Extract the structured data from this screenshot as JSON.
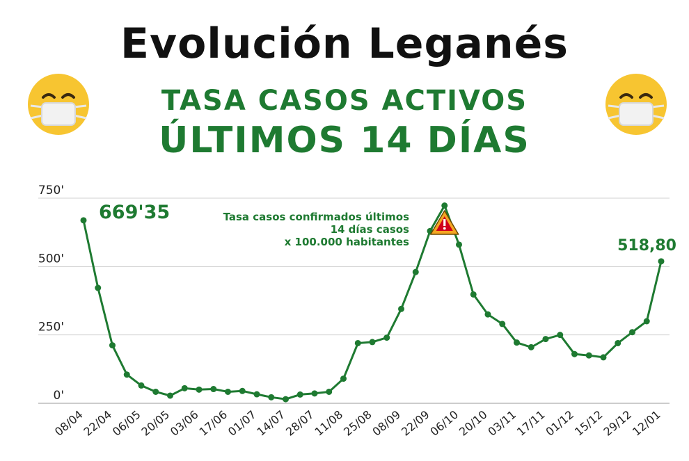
{
  "header": {
    "title": "Evolución Leganés",
    "subtitle1": "TASA CASOS ACTIVOS",
    "subtitle2": "ÚLTIMOS 14 DÍAS"
  },
  "icons": {
    "left": "masked-face-icon",
    "right": "masked-face-icon",
    "peak": "warning-icon"
  },
  "colors": {
    "line": "#1e7a31",
    "text_green": "#1e7a31",
    "grid": "#d0d0d0",
    "warning": "#f5a623",
    "warning_mark": "#d0021b"
  },
  "chart_data": {
    "type": "line",
    "title": "Tasa casos confirmados últimos 14 días casos x 100.000 habitantes",
    "annotation_lines": [
      "Tasa casos confirmados últimos",
      "14 días  casos",
      "x 100.000 habitantes"
    ],
    "first_label": "669'35",
    "last_label": "518,80",
    "ylim": [
      0,
      750
    ],
    "yticks": [
      0,
      250,
      500,
      750
    ],
    "ytick_labels": [
      "0'",
      "250'",
      "500'",
      "750'"
    ],
    "xtick_labels": [
      "08/04",
      "22/04",
      "06/05",
      "20/05",
      "03/06",
      "17/06",
      "01/07",
      "14/07",
      "28/07",
      "11/08",
      "25/08",
      "08/09",
      "22/09",
      "06/10",
      "20/10",
      "03/11",
      "17/11",
      "01/12",
      "15/12",
      "29/12",
      "12/01"
    ],
    "values": [
      669,
      422,
      212,
      105,
      65,
      42,
      28,
      55,
      50,
      52,
      42,
      45,
      33,
      22,
      15,
      32,
      36,
      42,
      90,
      220,
      224,
      240,
      345,
      480,
      630,
      723,
      580,
      398,
      325,
      290,
      222,
      205,
      235,
      250,
      180,
      175,
      168,
      220,
      260,
      300,
      519
    ]
  }
}
